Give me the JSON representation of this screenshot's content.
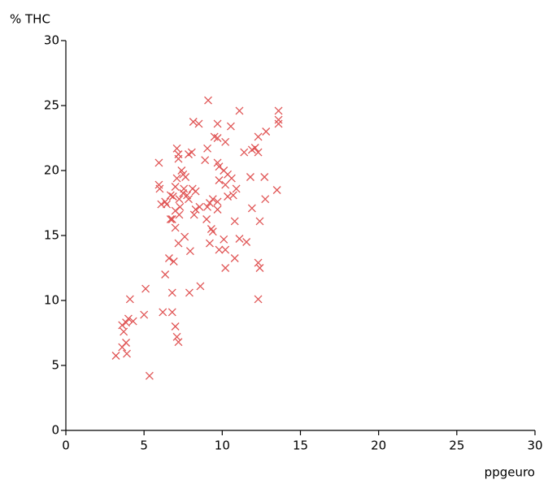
{
  "chart_data": {
    "type": "scatter",
    "x_label": "ppgeuro",
    "y_label": "% THC",
    "color": "#e05555",
    "marker": "x",
    "grid": false,
    "xlim": [
      0,
      30
    ],
    "xticks": [
      0,
      5,
      10,
      15,
      20,
      25,
      30
    ],
    "ylim": [
      0,
      30
    ],
    "yticks": [
      0,
      5,
      10,
      15,
      20,
      25,
      30
    ],
    "x": [
      3.2,
      3.85,
      3.6,
      3.9,
      3.7,
      3.6,
      3.85,
      4.0,
      4.3,
      4.1,
      5.0,
      5.1,
      5.35,
      6.2,
      6.8,
      6.8,
      6.35,
      6.6,
      6.9,
      7.0,
      7.1,
      7.2,
      7.9,
      8.6,
      7.95,
      7.2,
      7.6,
      7.0,
      6.8,
      7.25,
      6.45,
      6.1,
      6.0,
      5.95,
      5.95,
      6.7,
      7.1,
      7.0,
      7.25,
      7.5,
      7.75,
      7.85,
      8.1,
      8.3,
      8.2,
      8.55,
      7.3,
      7.0,
      6.7,
      7.55,
      7.65,
      7.4,
      7.2,
      7.1,
      7.2,
      8.15,
      8.5,
      8.05,
      8.9,
      9.05,
      9.5,
      9.7,
      9.1,
      9.7,
      10.55,
      10.2,
      9.7,
      9.8,
      10.1,
      10.35,
      10.6,
      9.8,
      10.2,
      10.9,
      10.7,
      10.35,
      9.7,
      9.4,
      9.05,
      9.2,
      9.7,
      9.0,
      9.3,
      9.4,
      9.2,
      10.1,
      9.8,
      10.2,
      10.2,
      10.8,
      10.8,
      11.1,
      11.55,
      11.9,
      11.8,
      11.4,
      11.9,
      12.3,
      12.1,
      12.3,
      12.8,
      11.1,
      13.6,
      13.6,
      13.6,
      13.5,
      12.7,
      12.75,
      12.4,
      12.3,
      12.4,
      12.3,
      7.85,
      7.5,
      8.3,
      6.85,
      6.35
    ],
    "values": [
      5.75,
      6.75,
      6.4,
      5.9,
      7.6,
      8.1,
      8.3,
      8.6,
      8.4,
      10.1,
      8.9,
      10.9,
      4.2,
      9.1,
      9.1,
      10.6,
      12.0,
      13.25,
      13.0,
      8.0,
      7.2,
      6.8,
      10.6,
      11.1,
      13.8,
      14.4,
      14.9,
      15.6,
      16.25,
      16.6,
      17.4,
      17.4,
      18.6,
      18.9,
      20.6,
      18.1,
      19.4,
      18.75,
      17.8,
      18.25,
      18.1,
      17.8,
      18.6,
      17.0,
      16.6,
      17.2,
      17.2,
      16.9,
      16.25,
      18.6,
      19.5,
      20.0,
      20.9,
      21.7,
      21.25,
      23.75,
      23.6,
      21.4,
      20.8,
      21.7,
      22.6,
      22.5,
      25.4,
      23.6,
      23.4,
      22.2,
      20.6,
      20.3,
      20.0,
      19.7,
      19.4,
      19.25,
      18.9,
      18.6,
      18.1,
      18.0,
      17.6,
      17.8,
      17.2,
      17.5,
      17.0,
      16.25,
      15.5,
      15.3,
      14.4,
      14.7,
      13.9,
      13.9,
      12.5,
      13.25,
      16.1,
      14.75,
      14.5,
      17.1,
      19.5,
      21.4,
      21.6,
      21.4,
      21.75,
      22.6,
      23.0,
      24.6,
      24.6,
      23.9,
      23.6,
      18.5,
      19.5,
      17.8,
      16.1,
      12.9,
      12.5,
      10.1,
      21.25,
      19.7,
      18.4,
      18.0,
      17.6
    ]
  }
}
